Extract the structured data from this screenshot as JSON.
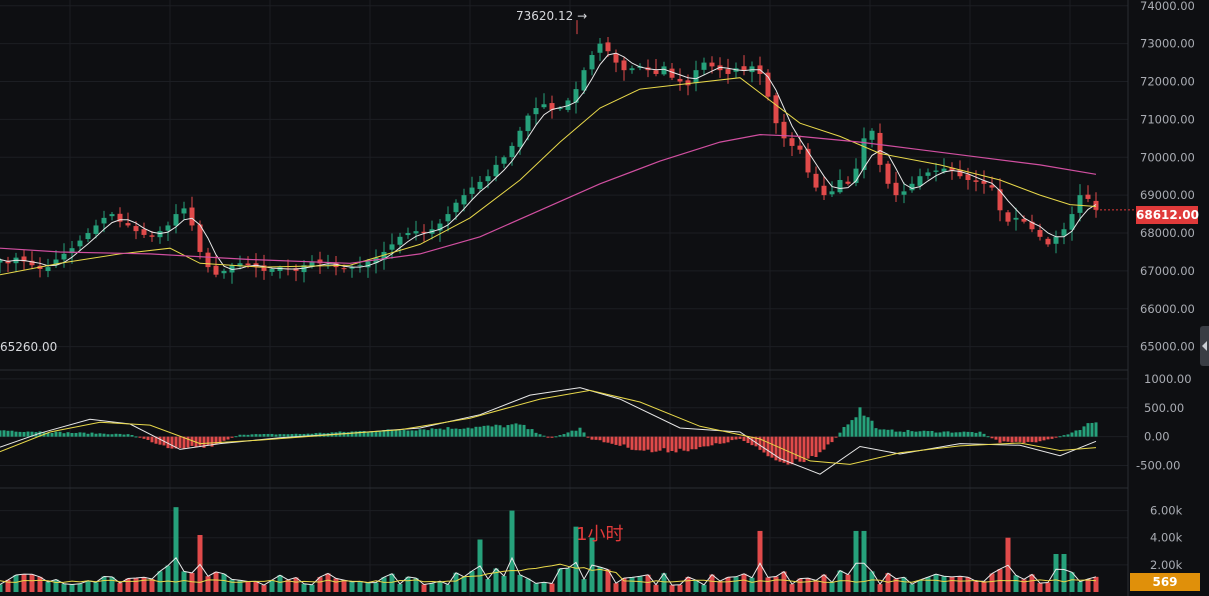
{
  "chart_data": [
    {
      "type": "candlestick",
      "panel": "price",
      "y_ticks": [
        "74000.00",
        "73000.00",
        "72000.00",
        "71000.00",
        "70000.00",
        "69000.00",
        "68000.00",
        "67000.00",
        "66000.00",
        "65000.00"
      ],
      "ylim": [
        64700,
        74100
      ],
      "last_price_label": "68612.00",
      "last_price": 68612,
      "high_label": "73620.12",
      "high_value": 73620,
      "low_label": "65260.00",
      "colors": {
        "up": "#26a17b",
        "down": "#e04a4a",
        "ma_fast": "#e8e8e8",
        "ma_mid": "#e8d84a",
        "ma_slow": "#d04fa0",
        "last_badge": "#e03a3a"
      },
      "ma_slow_points": [
        [
          0,
          67600
        ],
        [
          60,
          67500
        ],
        [
          150,
          67450
        ],
        [
          250,
          67300
        ],
        [
          350,
          67200
        ],
        [
          420,
          67450
        ],
        [
          480,
          67900
        ],
        [
          540,
          68600
        ],
        [
          600,
          69300
        ],
        [
          660,
          69900
        ],
        [
          720,
          70400
        ],
        [
          760,
          70600
        ],
        [
          800,
          70550
        ],
        [
          860,
          70400
        ],
        [
          920,
          70200
        ],
        [
          980,
          70000
        ],
        [
          1040,
          69800
        ],
        [
          1096,
          69550
        ]
      ],
      "ma_mid_points": [
        [
          0,
          66900
        ],
        [
          60,
          67200
        ],
        [
          120,
          67450
        ],
        [
          170,
          67600
        ],
        [
          200,
          67200
        ],
        [
          260,
          67100
        ],
        [
          350,
          67150
        ],
        [
          420,
          67700
        ],
        [
          470,
          68400
        ],
        [
          520,
          69400
        ],
        [
          560,
          70400
        ],
        [
          600,
          71300
        ],
        [
          640,
          71800
        ],
        [
          690,
          71950
        ],
        [
          740,
          72100
        ],
        [
          760,
          71700
        ],
        [
          800,
          70900
        ],
        [
          840,
          70550
        ],
        [
          880,
          70100
        ],
        [
          940,
          69800
        ],
        [
          1000,
          69400
        ],
        [
          1040,
          69000
        ],
        [
          1070,
          68750
        ],
        [
          1096,
          68700
        ]
      ],
      "candles_close": [
        67300,
        67200,
        67350,
        67250,
        67150,
        67050,
        67100,
        67300,
        67450,
        67600,
        67800,
        68000,
        68200,
        68400,
        68500,
        68300,
        68200,
        68050,
        67950,
        67900,
        68050,
        68200,
        68500,
        68650,
        68200,
        67500,
        67100,
        66900,
        67000,
        67150,
        67200,
        67150,
        67100,
        67000,
        67050,
        67100,
        67050,
        67000,
        67150,
        67250,
        67200,
        67150,
        67100,
        67050,
        67100,
        67150,
        67250,
        67350,
        67500,
        67700,
        67900,
        68000,
        68050,
        68000,
        68100,
        68250,
        68500,
        68800,
        69000,
        69200,
        69350,
        69500,
        69800,
        70000,
        70300,
        70700,
        71100,
        71300,
        71400,
        71250,
        71300,
        71500,
        71800,
        72300,
        72700,
        73000,
        72800,
        72500,
        72300,
        72350,
        72400,
        72300,
        72200,
        72400,
        72100,
        72000,
        71900,
        72300,
        72500,
        72400,
        72300,
        72200,
        72350,
        72300,
        72400,
        72200,
        71600,
        70900,
        70500,
        70300,
        70200,
        69600,
        69200,
        69000,
        69100,
        69400,
        69300,
        69700,
        70500,
        70700,
        69800,
        69300,
        69000,
        69100,
        69300,
        69500,
        69600,
        69650,
        69700,
        69650,
        69500,
        69400,
        69350,
        69300,
        69200,
        68600,
        68300,
        68400,
        68300,
        68100,
        67900,
        67700,
        67900,
        68100,
        68500,
        69000,
        68900,
        68612
      ],
      "volume_label": "569"
    },
    {
      "type": "macd",
      "panel": "oscillator",
      "y_ticks": [
        "1000.00",
        "500.00",
        "0.00",
        "-500.00"
      ],
      "ylim": [
        -750,
        1050
      ],
      "colors": {
        "up": "#26a17b",
        "down": "#e04a4a",
        "dif": "#e8e8e8",
        "dea": "#e8d84a"
      },
      "dif_points": [
        [
          0,
          -180
        ],
        [
          40,
          60
        ],
        [
          90,
          300
        ],
        [
          130,
          220
        ],
        [
          180,
          -220
        ],
        [
          220,
          -120
        ],
        [
          280,
          -20
        ],
        [
          350,
          60
        ],
        [
          420,
          150
        ],
        [
          480,
          380
        ],
        [
          530,
          720
        ],
        [
          580,
          850
        ],
        [
          620,
          650
        ],
        [
          680,
          150
        ],
        [
          740,
          80
        ],
        [
          780,
          -380
        ],
        [
          820,
          -650
        ],
        [
          860,
          -170
        ],
        [
          900,
          -300
        ],
        [
          960,
          -120
        ],
        [
          1020,
          -150
        ],
        [
          1060,
          -330
        ],
        [
          1096,
          -80
        ]
      ],
      "dea_points": [
        [
          0,
          -260
        ],
        [
          50,
          80
        ],
        [
          100,
          250
        ],
        [
          150,
          200
        ],
        [
          200,
          -120
        ],
        [
          260,
          -60
        ],
        [
          330,
          30
        ],
        [
          400,
          120
        ],
        [
          470,
          320
        ],
        [
          540,
          650
        ],
        [
          590,
          800
        ],
        [
          640,
          600
        ],
        [
          700,
          180
        ],
        [
          760,
          -40
        ],
        [
          810,
          -420
        ],
        [
          850,
          -480
        ],
        [
          900,
          -280
        ],
        [
          960,
          -160
        ],
        [
          1020,
          -110
        ],
        [
          1060,
          -240
        ],
        [
          1096,
          -190
        ]
      ],
      "histogram_profile": [
        [
          0,
          120
        ],
        [
          60,
          80
        ],
        [
          100,
          60
        ],
        [
          130,
          40
        ],
        [
          170,
          -200
        ],
        [
          210,
          -180
        ],
        [
          240,
          40
        ],
        [
          300,
          50
        ],
        [
          360,
          100
        ],
        [
          420,
          140
        ],
        [
          480,
          180
        ],
        [
          520,
          220
        ],
        [
          550,
          -30
        ],
        [
          580,
          150
        ],
        [
          590,
          -40
        ],
        [
          650,
          -280
        ],
        [
          700,
          -220
        ],
        [
          740,
          -40
        ],
        [
          780,
          -480
        ],
        [
          820,
          -350
        ],
        [
          850,
          300
        ],
        [
          860,
          500
        ],
        [
          880,
          120
        ],
        [
          920,
          100
        ],
        [
          980,
          80
        ],
        [
          1000,
          -100
        ],
        [
          1040,
          -100
        ],
        [
          1070,
          60
        ],
        [
          1096,
          300
        ]
      ]
    },
    {
      "type": "bar",
      "panel": "volume",
      "y_ticks": [
        "6.00k",
        "4.00k",
        "2.00k"
      ],
      "ylim": [
        0,
        7000
      ],
      "timeframe_label": "1小时",
      "colors": {
        "up": "#26a17b",
        "down": "#e04a4a",
        "ma1": "#e8e8e8",
        "ma2": "#e8d84a",
        "volume_badge": "#e0900a"
      },
      "volume_peaks": [
        [
          178,
          6000
        ],
        [
          200,
          4200
        ],
        [
          480,
          3800
        ],
        [
          510,
          6000
        ],
        [
          575,
          4800
        ],
        [
          590,
          4000
        ],
        [
          760,
          4500
        ],
        [
          860,
          4500
        ],
        [
          1007,
          4000
        ],
        [
          1060,
          2800
        ]
      ]
    }
  ]
}
